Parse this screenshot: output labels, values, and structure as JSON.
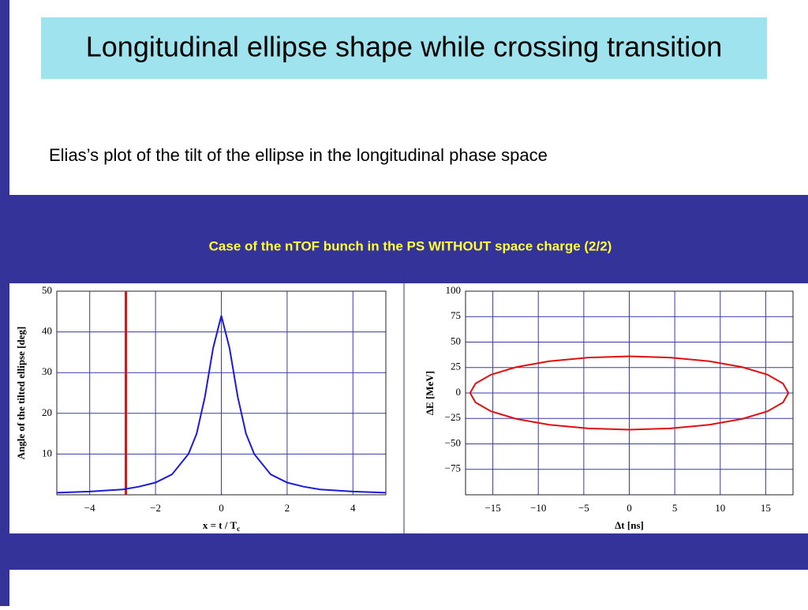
{
  "title": "Longitudinal ellipse shape while crossing transition",
  "subtitle": "Elias’s plot of the tilt of the ellipse in the longitudinal phase space",
  "banner": "Case of the nTOF bunch in the PS WITHOUT space charge (2/2)",
  "chart_data": [
    {
      "type": "line",
      "xlabel": "x = t / T",
      "xlabel_sub": "c",
      "ylabel": "Angle of the tilted ellipse [deg]",
      "x": [
        -5,
        -4,
        -3,
        -2.5,
        -2,
        -1.5,
        -1,
        -0.75,
        -0.5,
        -0.25,
        0,
        0.25,
        0.5,
        0.75,
        1,
        1.5,
        2,
        2.5,
        3,
        4,
        5
      ],
      "values": [
        0.5,
        0.8,
        1.3,
        2,
        3,
        5,
        10,
        15,
        24,
        36,
        44,
        36,
        24,
        15,
        10,
        5,
        3,
        2,
        1.3,
        0.8,
        0.5
      ],
      "color": "#1a1ad9",
      "marker_x": -2.9,
      "marker_color": "#e01010",
      "xlim": [
        -5,
        5
      ],
      "xticks": [
        {
          "value": -4,
          "label": "−4"
        },
        {
          "value": -2,
          "label": "−2"
        },
        0,
        2,
        4
      ],
      "ylim": [
        0,
        50
      ],
      "yticks": [
        10,
        20,
        30,
        40,
        50
      ],
      "grid": true
    },
    {
      "type": "line",
      "xlabel": "Δt [ns]",
      "ylabel": "ΔE [MeV]",
      "x": [
        17.5,
        16.9,
        15.2,
        12.4,
        8.8,
        4.5,
        0,
        -4.5,
        -8.8,
        -12.4,
        -15.2,
        -16.9,
        -17.5,
        -16.9,
        -15.2,
        -12.4,
        -8.8,
        -4.5,
        0,
        4.5,
        8.8,
        12.4,
        15.2,
        16.9,
        17.5
      ],
      "values": [
        0,
        9.3,
        18,
        25.5,
        31.2,
        34.8,
        36,
        34.8,
        31.2,
        25.5,
        18,
        9.3,
        0,
        -9.3,
        -18,
        -25.5,
        -31.2,
        -34.8,
        -36,
        -34.8,
        -31.2,
        -25.5,
        -18,
        -9.3,
        0
      ],
      "color": "#e01010",
      "xlim": [
        -18,
        18
      ],
      "xticks": [
        {
          "value": -15,
          "label": "−15"
        },
        {
          "value": -10,
          "label": "−10"
        },
        {
          "value": -5,
          "label": "−5"
        },
        0,
        5,
        10,
        15
      ],
      "ylim": [
        -100,
        100
      ],
      "yticks": [
        {
          "value": -75,
          "label": "−75"
        },
        {
          "value": -50,
          "label": "−50"
        },
        {
          "value": -25,
          "label": "−25"
        },
        0,
        25,
        50,
        75,
        100
      ],
      "grid": true
    }
  ]
}
